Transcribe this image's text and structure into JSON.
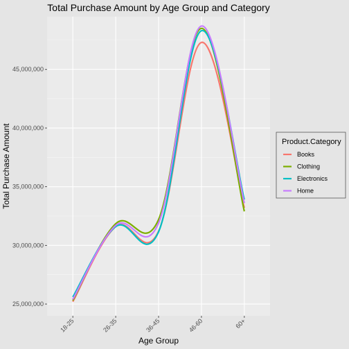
{
  "chart_data": {
    "type": "line",
    "title": "Total Purchase Amount by Age Group and Category",
    "xlabel": "Age Group",
    "ylabel": "Total Purchase Amount",
    "categories": [
      "18-25",
      "26-35",
      "36-45",
      "46-60",
      "60+"
    ],
    "ylim": [
      24000000,
      49500000
    ],
    "yticks": [
      25000000,
      30000000,
      35000000,
      40000000,
      45000000
    ],
    "ytick_labels": [
      "25,000,000",
      "30,000,000",
      "35,000,000",
      "40,000,000",
      "45,000,000"
    ],
    "grid": true,
    "legend": {
      "title": "Product.Category",
      "position": "right"
    },
    "series": [
      {
        "name": "Books",
        "color": "#f8766d",
        "values": [
          25200000,
          31600000,
          31200000,
          47300000,
          33200000
        ]
      },
      {
        "name": "Clothing",
        "color": "#7cae00",
        "values": [
          25300000,
          31850000,
          32200000,
          48500000,
          32900000
        ]
      },
      {
        "name": "Electronics",
        "color": "#00bfc4",
        "values": [
          25600000,
          31600000,
          31150000,
          48300000,
          33900000
        ]
      },
      {
        "name": "Home",
        "color": "#c77cff",
        "values": [
          25400000,
          31700000,
          31900000,
          48700000,
          33600000
        ]
      }
    ]
  }
}
